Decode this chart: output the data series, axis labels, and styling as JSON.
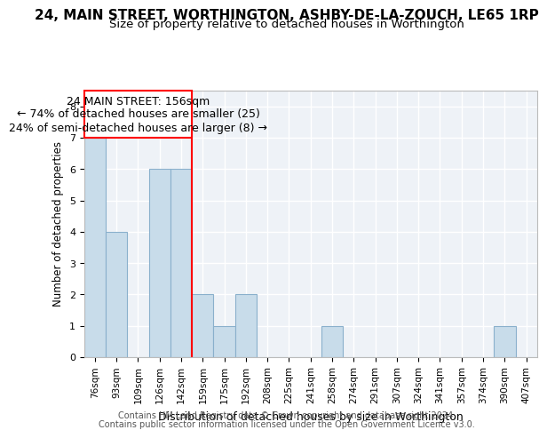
{
  "title": "24, MAIN STREET, WORTHINGTON, ASHBY-DE-LA-ZOUCH, LE65 1RP",
  "subtitle": "Size of property relative to detached houses in Worthington",
  "xlabel": "Distribution of detached houses by size in Worthington",
  "ylabel": "Number of detached properties",
  "bin_labels": [
    "76sqm",
    "93sqm",
    "109sqm",
    "126sqm",
    "142sqm",
    "159sqm",
    "175sqm",
    "192sqm",
    "208sqm",
    "225sqm",
    "241sqm",
    "258sqm",
    "274sqm",
    "291sqm",
    "307sqm",
    "324sqm",
    "341sqm",
    "357sqm",
    "374sqm",
    "390sqm",
    "407sqm"
  ],
  "bar_values": [
    7,
    4,
    0,
    6,
    6,
    2,
    1,
    2,
    0,
    0,
    0,
    1,
    0,
    0,
    0,
    0,
    0,
    0,
    0,
    1,
    0
  ],
  "bar_color": "#c8dcea",
  "bar_edge_color": "#8ab0cc",
  "vline_x": 4.5,
  "annotation_title": "24 MAIN STREET: 156sqm",
  "annotation_line1": "← 74% of detached houses are smaller (25)",
  "annotation_line2": "24% of semi-detached houses are larger (8) →",
  "ylim": [
    0,
    8.5
  ],
  "yticks": [
    0,
    1,
    2,
    3,
    4,
    5,
    6,
    7,
    8
  ],
  "footer1": "Contains HM Land Registry data © Crown copyright and database right 2024.",
  "footer2": "Contains public sector information licensed under the Open Government Licence v3.0.",
  "title_fontsize": 11,
  "subtitle_fontsize": 9.5,
  "xlabel_fontsize": 9,
  "ylabel_fontsize": 8.5,
  "tick_fontsize": 8,
  "xtick_fontsize": 7.5,
  "annotation_fontsize": 9,
  "footer_fontsize": 7,
  "bg_color": "#eef2f7",
  "grid_color": "#ffffff"
}
